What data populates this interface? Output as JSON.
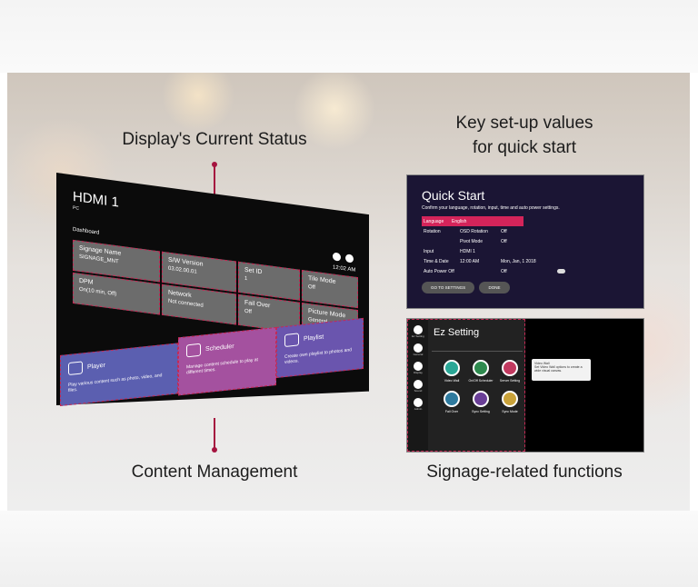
{
  "labels": {
    "status": "Display's Current Status",
    "setup_line1": "Key set-up values",
    "setup_line2": "for quick start",
    "content": "Content Management",
    "signage": "Signage-related functions"
  },
  "colors": {
    "accent": "#a5143f",
    "dashed": "#c42a55",
    "player": "#5b5fb0",
    "scheduler": "#a4519f",
    "playlist": "#6a55ae",
    "quickstart_bg": "#1b1534",
    "highlight": "#d4245a"
  },
  "dashboard": {
    "input": "HDMI 1",
    "input_sub": "PC",
    "section": "Dashboard",
    "time": "12:02 AM",
    "tiles": [
      {
        "title": "Signage Name",
        "value": "SIGNAGE_MNT",
        "icon": "signage-icon"
      },
      {
        "title": "S/W Version",
        "value": "03.02.00.01",
        "icon": "cloud-icon"
      },
      {
        "title": "Set ID",
        "value": "1",
        "icon": "id-icon"
      },
      {
        "title": "Tile Mode",
        "value": "Off",
        "icon": "tile-icon"
      },
      {
        "title": "DPM",
        "value": "On(10 min, Off)",
        "icon": "power-icon"
      },
      {
        "title": "Network",
        "value": "Not connected",
        "icon": "wifi-icon"
      },
      {
        "title": "Fail Over",
        "value": "Off",
        "icon": "failover-icon"
      },
      {
        "title": "Picture Mode",
        "value": "General",
        "icon": "picture-icon"
      }
    ],
    "content": [
      {
        "title": "Player",
        "desc": "Play various content such as photo, video, and files."
      },
      {
        "title": "Scheduler",
        "desc": "Manage content schedule to play at different times."
      },
      {
        "title": "Playlist",
        "desc": "Create own playlist to photos and videos."
      }
    ]
  },
  "quickstart": {
    "title": "Quick Start",
    "subtitle": "Confirm your language, rotation, input, time and auto power settings.",
    "rows": [
      {
        "label": "Language",
        "a": "English",
        "b": ""
      },
      {
        "label": "Rotation",
        "a": "OSD Rotation",
        "b": "Off"
      },
      {
        "label": "",
        "a": "Pivot Mode",
        "b": "Off"
      },
      {
        "label": "Input",
        "a": "HDMI 1",
        "b": ""
      },
      {
        "label": "Time & Date",
        "a": "12:00 AM",
        "b": "Mon, Jan, 1 2018"
      },
      {
        "label": "Auto Power Off",
        "a": "",
        "b": "Off"
      }
    ],
    "buttons": [
      "GO TO SETTINGS",
      "DONE"
    ]
  },
  "ez": {
    "title": "Ez Setting",
    "sidebar": [
      "Ez Setting",
      "General",
      "Display",
      "Sound",
      "Admin"
    ],
    "apps": [
      {
        "label": "Video Wall",
        "color": "#2aa796"
      },
      {
        "label": "On/Off Scheduler",
        "color": "#2e8a4e"
      },
      {
        "label": "Server Setting",
        "color": "#c23a60"
      },
      {
        "label": "Fail Over",
        "color": "#2e7a9e"
      },
      {
        "label": "Sync Setting",
        "color": "#6a3f97"
      },
      {
        "label": "Sync Mode",
        "color": "#c9a23a"
      }
    ],
    "tooltip_title": "Video Wall",
    "tooltip_text": "Set Video Wall options to create a wide visual canvas."
  }
}
